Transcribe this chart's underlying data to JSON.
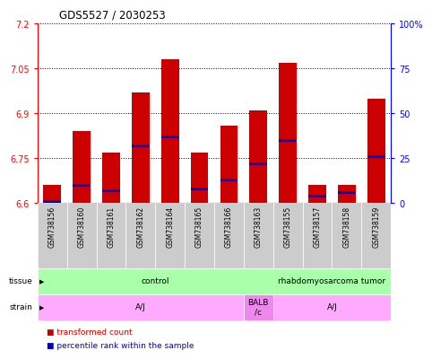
{
  "title": "GDS5527 / 2030253",
  "samples": [
    "GSM738156",
    "GSM738160",
    "GSM738161",
    "GSM738162",
    "GSM738164",
    "GSM738165",
    "GSM738166",
    "GSM738163",
    "GSM738155",
    "GSM738157",
    "GSM738158",
    "GSM738159"
  ],
  "red_values": [
    6.66,
    6.84,
    6.77,
    6.97,
    7.08,
    6.77,
    6.86,
    6.91,
    7.07,
    6.66,
    6.66,
    6.95
  ],
  "blue_values": [
    1,
    10,
    7,
    32,
    37,
    8,
    13,
    22,
    35,
    4,
    6,
    26
  ],
  "ymin": 6.6,
  "ymax": 7.2,
  "y2min": 0,
  "y2max": 100,
  "yticks": [
    6.6,
    6.75,
    6.9,
    7.05,
    7.2
  ],
  "y2ticks": [
    0,
    25,
    50,
    75,
    100
  ],
  "bar_color": "#cc0000",
  "blue_color": "#0000cc",
  "bar_width": 0.6,
  "tissue_data": [
    {
      "start": 0,
      "end": 7,
      "text": "control",
      "color": "#aaffaa"
    },
    {
      "start": 8,
      "end": 11,
      "text": "rhabdomyosarcoma tumor",
      "color": "#aaffaa"
    }
  ],
  "strain_data": [
    {
      "start": 0,
      "end": 6,
      "text": "A/J",
      "color": "#ffaaff"
    },
    {
      "start": 7,
      "end": 7,
      "text": "BALB\n/c",
      "color": "#ee88ee"
    },
    {
      "start": 8,
      "end": 11,
      "text": "A/J",
      "color": "#ffaaff"
    }
  ],
  "sample_bg_color": "#cccccc",
  "grid_color": "black",
  "spine_color": "black"
}
